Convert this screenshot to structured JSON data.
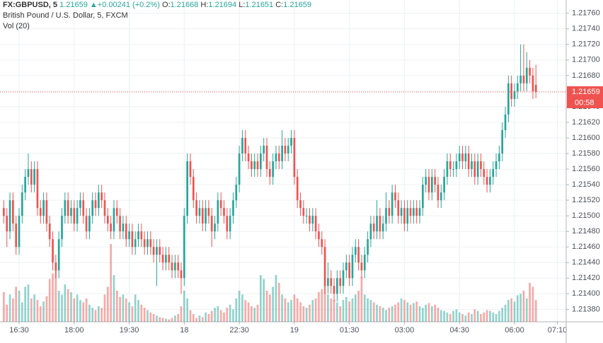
{
  "chart_data": {
    "type": "candlestick",
    "symbol": "FX:GBPUSD, 5",
    "change_arrow": "▲",
    "change": "+0.00241",
    "change_pct": "(+0.2%)",
    "ohlc_labels": [
      "O:",
      "H:",
      "L:",
      "C:"
    ],
    "title": "British Pound / U.S. Dollar, 5, FXCM",
    "volume_label": "Vol (20)",
    "countdown": "00:58",
    "up_color": "#26a69a",
    "down_color": "#ef5350",
    "grid": true,
    "ylim": [
      1.21364,
      1.21777
    ],
    "yticks": [
      {
        "value": 1.2138,
        "label": "1.21380"
      },
      {
        "value": 1.214,
        "label": "1.21400"
      },
      {
        "value": 1.2142,
        "label": "1.21420"
      },
      {
        "value": 1.2144,
        "label": "1.21440"
      },
      {
        "value": 1.2146,
        "label": "1.21460"
      },
      {
        "value": 1.2148,
        "label": "1.21480"
      },
      {
        "value": 1.215,
        "label": "1.21500"
      },
      {
        "value": 1.2152,
        "label": "1.21520"
      },
      {
        "value": 1.2154,
        "label": "1.21540"
      },
      {
        "value": 1.2156,
        "label": "1.21560"
      },
      {
        "value": 1.2158,
        "label": "1.21580"
      },
      {
        "value": 1.216,
        "label": "1.21600"
      },
      {
        "value": 1.2162,
        "label": "1.21620"
      },
      {
        "value": 1.2164,
        "label": "1.21640"
      },
      {
        "value": 1.2166,
        "label": "1.21660"
      },
      {
        "value": 1.2168,
        "label": "1.21680"
      },
      {
        "value": 1.217,
        "label": "1.21700"
      },
      {
        "value": 1.2172,
        "label": "1.21720"
      },
      {
        "value": 1.2174,
        "label": "1.21740"
      },
      {
        "value": 1.2176,
        "label": "1.21760"
      }
    ],
    "xlim": [
      -1.25,
      183.9
    ],
    "xticks": [
      {
        "value": 5,
        "label": "16:30"
      },
      {
        "value": 23,
        "label": "18:00"
      },
      {
        "value": 41,
        "label": "19:30"
      },
      {
        "value": 59,
        "label": "18"
      },
      {
        "value": 77,
        "label": "22:30"
      },
      {
        "value": 95,
        "label": "19"
      },
      {
        "value": 113,
        "label": "01:30"
      },
      {
        "value": 131,
        "label": "03:00"
      },
      {
        "value": 149,
        "label": "04:30"
      },
      {
        "value": 167,
        "label": "06:00"
      },
      {
        "value": 181,
        "label": "07:10"
      }
    ],
    "open": [
      1.2151,
      1.215,
      1.2148,
      1.2152,
      1.2149,
      1.2146,
      1.215,
      1.2153,
      1.2155,
      1.2156,
      1.2154,
      1.2156,
      1.2151,
      1.215,
      1.2152,
      1.2149,
      1.2147,
      1.2144,
      1.2143,
      1.2147,
      1.215,
      1.2152,
      1.215,
      1.2151,
      1.2149,
      1.2151,
      1.2152,
      1.215,
      1.2148,
      1.215,
      1.2152,
      1.2151,
      1.2153,
      1.2152,
      1.215,
      1.2149,
      1.2148,
      1.2151,
      1.215,
      1.2148,
      1.2149,
      1.2147,
      1.2148,
      1.2146,
      1.2147,
      1.2148,
      1.2147,
      1.2146,
      1.2147,
      1.2146,
      1.2145,
      1.2146,
      1.2145,
      1.2144,
      1.2145,
      1.2144,
      1.2143,
      1.2144,
      1.2143,
      1.2142,
      1.215,
      1.2157,
      1.2155,
      1.2152,
      1.215,
      1.2151,
      1.2149,
      1.2151,
      1.215,
      1.2148,
      1.2149,
      1.2152,
      1.2151,
      1.215,
      1.2148,
      1.215,
      1.2152,
      1.2154,
      1.2158,
      1.216,
      1.2158,
      1.2157,
      1.2156,
      1.2157,
      1.2156,
      1.2158,
      1.2159,
      1.2156,
      1.2155,
      1.2157,
      1.2158,
      1.2157,
      1.2159,
      1.2158,
      1.2159,
      1.216,
      1.2155,
      1.2152,
      1.2151,
      1.215,
      1.215,
      1.2149,
      1.215,
      1.2148,
      1.2147,
      1.2146,
      1.2141,
      1.2142,
      1.2141,
      1.214,
      1.2142,
      1.2141,
      1.2143,
      1.2144,
      1.2142,
      1.2145,
      1.2146,
      1.2144,
      1.2143,
      1.2145,
      1.2147,
      1.2149,
      1.2148,
      1.215,
      1.2148,
      1.2149,
      1.2151,
      1.215,
      1.2153,
      1.2152,
      1.215,
      1.2151,
      1.2149,
      1.2151,
      1.215,
      1.2151,
      1.215,
      1.2151,
      1.2154,
      1.2155,
      1.2153,
      1.2155,
      1.2154,
      1.2152,
      1.2153,
      1.2155,
      1.2157,
      1.2156,
      1.2156,
      1.2157,
      1.2158,
      1.2157,
      1.2158,
      1.2156,
      1.2157,
      1.2155,
      1.2157,
      1.2156,
      1.2155,
      1.2154,
      1.2155,
      1.2156,
      1.2157,
      1.2158,
      1.2161,
      1.2163,
      1.2167,
      1.2165,
      1.2166,
      1.2167,
      1.2168,
      1.2167,
      1.2169,
      1.2168,
      1.21668
    ],
    "high": [
      1.2152,
      1.2151,
      1.2153,
      1.2153,
      1.215,
      1.2151,
      1.2154,
      1.2156,
      1.2158,
      1.2157,
      1.2157,
      1.2157,
      1.2152,
      1.2153,
      1.2153,
      1.215,
      1.2148,
      1.2145,
      1.2148,
      1.2151,
      1.2153,
      1.2153,
      1.2152,
      1.2152,
      1.2152,
      1.2153,
      1.2153,
      1.2151,
      1.2151,
      1.2153,
      1.2153,
      1.2154,
      1.2154,
      1.2153,
      1.2151,
      1.215,
      1.2152,
      1.2152,
      1.2151,
      1.215,
      1.215,
      1.2149,
      1.2149,
      1.2148,
      1.2149,
      1.2149,
      1.2148,
      1.2148,
      1.2148,
      1.2147,
      1.2147,
      1.2147,
      1.2146,
      1.2146,
      1.2146,
      1.2145,
      1.2145,
      1.2145,
      1.2144,
      1.2151,
      1.2158,
      1.2158,
      1.2156,
      1.2153,
      1.2152,
      1.2152,
      1.2152,
      1.2152,
      1.2151,
      1.215,
      1.2153,
      1.2153,
      1.2152,
      1.2151,
      1.2151,
      1.2153,
      1.2155,
      1.2159,
      1.2161,
      1.2161,
      1.2159,
      1.2158,
      1.2158,
      1.2158,
      1.2159,
      1.216,
      1.216,
      1.2157,
      1.2158,
      1.2159,
      1.2159,
      1.2161,
      1.216,
      1.216,
      1.2161,
      1.2161,
      1.2156,
      1.2153,
      1.2152,
      1.2151,
      1.2151,
      1.2151,
      1.2151,
      1.2149,
      1.2148,
      1.2147,
      1.2144,
      1.2143,
      1.2142,
      1.2143,
      1.2143,
      1.2144,
      1.2145,
      1.2145,
      1.2146,
      1.2147,
      1.2147,
      1.2145,
      1.2146,
      1.2148,
      1.215,
      1.215,
      1.2152,
      1.2151,
      1.215,
      1.2153,
      1.2152,
      1.2154,
      1.2154,
      1.2153,
      1.2152,
      1.2152,
      1.2152,
      1.2152,
      1.2152,
      1.2152,
      1.2152,
      1.2155,
      1.2156,
      1.2156,
      1.2156,
      1.2156,
      1.2155,
      1.2154,
      1.2156,
      1.2158,
      1.2158,
      1.2157,
      1.2158,
      1.2159,
      1.2159,
      1.2159,
      1.2159,
      1.2158,
      1.2158,
      1.2158,
      1.2158,
      1.2157,
      1.2156,
      1.2156,
      1.2157,
      1.2158,
      1.2159,
      1.2162,
      1.2164,
      1.2168,
      1.2168,
      1.2167,
      1.2168,
      1.2172,
      1.2172,
      1.2171,
      1.217,
      1.2169,
      1.21694
    ],
    "low": [
      1.2149,
      1.2146,
      1.2147,
      1.2148,
      1.2145,
      1.2145,
      1.2149,
      1.2152,
      1.2154,
      1.2153,
      1.2153,
      1.215,
      1.2149,
      1.2149,
      1.2148,
      1.2146,
      1.2143,
      1.2142,
      1.2142,
      1.2146,
      1.2149,
      1.2149,
      1.2149,
      1.2148,
      1.2148,
      1.215,
      1.2149,
      1.2147,
      1.2147,
      1.2149,
      1.215,
      1.215,
      1.2151,
      1.2149,
      1.2148,
      1.2147,
      1.2147,
      1.2149,
      1.2147,
      1.2147,
      1.2146,
      1.2146,
      1.2145,
      1.2145,
      1.2146,
      1.2146,
      1.2145,
      1.2145,
      1.2145,
      1.2144,
      1.2141,
      1.2144,
      1.2143,
      1.2143,
      1.2143,
      1.2142,
      1.2142,
      1.2142,
      1.214,
      1.2141,
      1.2149,
      1.2154,
      1.2151,
      1.2149,
      1.2149,
      1.2148,
      1.2148,
      1.2149,
      1.2146,
      1.2147,
      1.2148,
      1.215,
      1.2149,
      1.2147,
      1.2147,
      1.2149,
      1.2151,
      1.2153,
      1.2157,
      1.2157,
      1.2156,
      1.2155,
      1.2155,
      1.2155,
      1.2155,
      1.2157,
      1.2155,
      1.2154,
      1.2154,
      1.2156,
      1.2156,
      1.2156,
      1.2157,
      1.2157,
      1.2158,
      1.2154,
      1.2151,
      1.215,
      1.2149,
      1.2149,
      1.2148,
      1.2148,
      1.2147,
      1.2146,
      1.2145,
      1.214,
      1.214,
      1.214,
      1.2139,
      1.2139,
      1.214,
      1.214,
      1.2142,
      1.2141,
      1.2141,
      1.2144,
      1.2143,
      1.2142,
      1.2142,
      1.2144,
      1.2146,
      1.2147,
      1.2147,
      1.2147,
      1.2147,
      1.2148,
      1.2149,
      1.2149,
      1.2151,
      1.2149,
      1.2149,
      1.2148,
      1.2148,
      1.2149,
      1.2149,
      1.2149,
      1.2149,
      1.215,
      1.2153,
      1.2152,
      1.2152,
      1.2153,
      1.2151,
      1.2151,
      1.2152,
      1.2154,
      1.2155,
      1.2155,
      1.2155,
      1.2156,
      1.2156,
      1.2156,
      1.2155,
      1.2155,
      1.2154,
      1.2154,
      1.2155,
      1.2154,
      1.2153,
      1.2153,
      1.2154,
      1.2155,
      1.2156,
      1.2157,
      1.216,
      1.2162,
      1.2164,
      1.2164,
      1.2165,
      1.2166,
      1.2166,
      1.2166,
      1.2167,
      1.2165,
      1.21651
    ],
    "close": [
      1.215,
      1.2148,
      1.2152,
      1.2149,
      1.2146,
      1.215,
      1.2153,
      1.2155,
      1.2156,
      1.2154,
      1.2156,
      1.2151,
      1.215,
      1.2152,
      1.2149,
      1.2147,
      1.2144,
      1.2143,
      1.2147,
      1.215,
      1.2152,
      1.215,
      1.2151,
      1.2149,
      1.2151,
      1.2152,
      1.215,
      1.2148,
      1.215,
      1.2152,
      1.2151,
      1.2153,
      1.2152,
      1.215,
      1.2149,
      1.2148,
      1.2151,
      1.215,
      1.2148,
      1.2149,
      1.2147,
      1.2148,
      1.2146,
      1.2147,
      1.2148,
      1.2147,
      1.2146,
      1.2147,
      1.2146,
      1.2145,
      1.2146,
      1.2145,
      1.2144,
      1.2145,
      1.2144,
      1.2143,
      1.2144,
      1.2143,
      1.2142,
      1.215,
      1.2157,
      1.2155,
      1.2152,
      1.215,
      1.2151,
      1.2149,
      1.2151,
      1.215,
      1.2148,
      1.2149,
      1.2152,
      1.2151,
      1.215,
      1.2148,
      1.215,
      1.2152,
      1.2154,
      1.2158,
      1.216,
      1.2158,
      1.2157,
      1.2156,
      1.2157,
      1.2156,
      1.2158,
      1.2159,
      1.2156,
      1.2155,
      1.2157,
      1.2158,
      1.2157,
      1.2159,
      1.2158,
      1.2159,
      1.216,
      1.2155,
      1.2152,
      1.2151,
      1.215,
      1.215,
      1.2149,
      1.215,
      1.2148,
      1.2147,
      1.2146,
      1.2141,
      1.2142,
      1.2141,
      1.214,
      1.2142,
      1.2141,
      1.2143,
      1.2144,
      1.2142,
      1.2145,
      1.2146,
      1.2144,
      1.2143,
      1.2145,
      1.2147,
      1.2149,
      1.2148,
      1.215,
      1.2148,
      1.2149,
      1.2151,
      1.215,
      1.2153,
      1.2152,
      1.215,
      1.2151,
      1.2149,
      1.2151,
      1.215,
      1.2151,
      1.215,
      1.2151,
      1.2154,
      1.2155,
      1.2153,
      1.2155,
      1.2154,
      1.2152,
      1.2153,
      1.2155,
      1.2157,
      1.2156,
      1.2156,
      1.2157,
      1.2158,
      1.2157,
      1.2158,
      1.2156,
      1.2157,
      1.2155,
      1.2157,
      1.2156,
      1.2155,
      1.2154,
      1.2155,
      1.2156,
      1.2157,
      1.2158,
      1.2161,
      1.2163,
      1.2167,
      1.2165,
      1.2166,
      1.2167,
      1.2168,
      1.2167,
      1.2169,
      1.2168,
      1.2166,
      1.21659
    ],
    "volume": [
      38,
      22,
      35,
      30,
      45,
      40,
      25,
      45,
      48,
      30,
      35,
      28,
      20,
      26,
      33,
      55,
      62,
      70,
      40,
      35,
      48,
      42,
      38,
      30,
      35,
      28,
      25,
      30,
      22,
      18,
      15,
      20,
      18,
      35,
      45,
      100,
      60,
      40,
      32,
      35,
      30,
      25,
      20,
      35,
      28,
      22,
      18,
      15,
      12,
      10,
      8,
      6,
      5,
      4,
      3,
      5,
      8,
      10,
      20,
      40,
      30,
      15,
      10,
      5,
      8,
      6,
      12,
      10,
      14,
      18,
      20,
      15,
      12,
      18,
      22,
      16,
      30,
      40,
      35,
      28,
      25,
      20,
      18,
      22,
      60,
      55,
      40,
      35,
      45,
      60,
      50,
      35,
      30,
      25,
      28,
      35,
      30,
      25,
      20,
      18,
      22,
      28,
      30,
      38,
      42,
      48,
      35,
      30,
      28,
      25,
      20,
      28,
      32,
      26,
      30,
      35,
      40,
      58,
      35,
      30,
      28,
      25,
      22,
      20,
      18,
      15,
      18,
      20,
      22,
      25,
      30,
      28,
      25,
      22,
      24,
      26,
      20,
      18,
      22,
      24,
      20,
      22,
      18,
      15,
      14,
      12,
      10,
      14,
      16,
      12,
      10,
      8,
      12,
      10,
      16,
      14,
      10,
      12,
      15,
      14,
      12,
      10,
      14,
      18,
      22,
      28,
      30,
      26,
      34,
      36,
      40,
      30,
      50,
      45,
      28
    ]
  }
}
